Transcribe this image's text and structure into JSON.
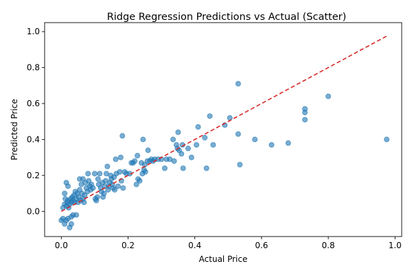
{
  "chart_data": {
    "type": "scatter",
    "title": "Ridge Regression Predictions vs Actual (Scatter)",
    "xlabel": "Actual Price",
    "ylabel": "Predicted Price",
    "xlim": [
      -0.05,
      1.02
    ],
    "ylim": [
      -0.14,
      1.05
    ],
    "xticks": [
      0.0,
      0.2,
      0.4,
      0.6,
      0.8,
      1.0
    ],
    "yticks": [
      0.0,
      0.2,
      0.4,
      0.6,
      0.8,
      1.0
    ],
    "xtick_labels": [
      "0.0",
      "0.2",
      "0.4",
      "0.6",
      "0.8",
      "1.0"
    ],
    "ytick_labels": [
      "0.0",
      "0.2",
      "0.4",
      "0.6",
      "0.8",
      "1.0"
    ],
    "grid": false,
    "legend": "none",
    "colors": {
      "points": "#1f77b4",
      "reference_line": "#d62728"
    },
    "reference_line": {
      "style": "dashed",
      "x": [
        0.0,
        0.975
      ],
      "y": [
        0.0,
        0.975
      ]
    },
    "points": [
      [
        0.0,
        -0.05
      ],
      [
        0.005,
        -0.04
      ],
      [
        0.01,
        -0.07
      ],
      [
        0.015,
        -0.05
      ],
      [
        0.02,
        -0.04
      ],
      [
        0.025,
        -0.09
      ],
      [
        0.03,
        -0.07
      ],
      [
        0.03,
        -0.03
      ],
      [
        0.035,
        -0.02
      ],
      [
        0.045,
        -0.02
      ],
      [
        0.005,
        0.02
      ],
      [
        0.01,
        0.04
      ],
      [
        0.012,
        0.07
      ],
      [
        0.015,
        0.03
      ],
      [
        0.018,
        0.05
      ],
      [
        0.02,
        0.06
      ],
      [
        0.022,
        0.02
      ],
      [
        0.025,
        0.04
      ],
      [
        0.028,
        0.07
      ],
      [
        0.03,
        0.05
      ],
      [
        0.033,
        0.08
      ],
      [
        0.035,
        0.06
      ],
      [
        0.038,
        0.09
      ],
      [
        0.04,
        0.05
      ],
      [
        0.042,
        0.11
      ],
      [
        0.045,
        0.07
      ],
      [
        0.048,
        0.1
      ],
      [
        0.05,
        0.05
      ],
      [
        0.052,
        0.08
      ],
      [
        0.055,
        0.12
      ],
      [
        0.058,
        0.06
      ],
      [
        0.06,
        0.15
      ],
      [
        0.062,
        0.1
      ],
      [
        0.065,
        0.07
      ],
      [
        0.068,
        0.05
      ],
      [
        0.07,
        0.09
      ],
      [
        0.072,
        0.16
      ],
      [
        0.075,
        0.13
      ],
      [
        0.078,
        0.11
      ],
      [
        0.08,
        0.21
      ],
      [
        0.082,
        0.17
      ],
      [
        0.085,
        0.14
      ],
      [
        0.088,
        0.12
      ],
      [
        0.09,
        0.15
      ],
      [
        0.095,
        0.13
      ],
      [
        0.01,
        0.1
      ],
      [
        0.015,
        0.16
      ],
      [
        0.02,
        0.14
      ],
      [
        0.055,
        0.18
      ],
      [
        0.065,
        0.18
      ],
      [
        0.1,
        0.21
      ],
      [
        0.102,
        0.07
      ],
      [
        0.105,
        0.06
      ],
      [
        0.108,
        0.08
      ],
      [
        0.11,
        0.18
      ],
      [
        0.112,
        0.15
      ],
      [
        0.115,
        0.21
      ],
      [
        0.118,
        0.13
      ],
      [
        0.12,
        0.11
      ],
      [
        0.123,
        0.16
      ],
      [
        0.125,
        0.08
      ],
      [
        0.128,
        0.1
      ],
      [
        0.13,
        0.14
      ],
      [
        0.133,
        0.17
      ],
      [
        0.135,
        0.21
      ],
      [
        0.138,
        0.25
      ],
      [
        0.14,
        0.12
      ],
      [
        0.142,
        0.14
      ],
      [
        0.145,
        0.16
      ],
      [
        0.148,
        0.2
      ],
      [
        0.15,
        0.18
      ],
      [
        0.153,
        0.15
      ],
      [
        0.155,
        0.13
      ],
      [
        0.158,
        0.19
      ],
      [
        0.16,
        0.12
      ],
      [
        0.163,
        0.29
      ],
      [
        0.165,
        0.21
      ],
      [
        0.17,
        0.14
      ],
      [
        0.175,
        0.22
      ],
      [
        0.178,
        0.3
      ],
      [
        0.18,
        0.17
      ],
      [
        0.183,
        0.42
      ],
      [
        0.185,
        0.13
      ],
      [
        0.19,
        0.22
      ],
      [
        0.195,
        0.21
      ],
      [
        0.205,
        0.21
      ],
      [
        0.21,
        0.27
      ],
      [
        0.215,
        0.27
      ],
      [
        0.22,
        0.28
      ],
      [
        0.225,
        0.15
      ],
      [
        0.228,
        0.31
      ],
      [
        0.23,
        0.18
      ],
      [
        0.235,
        0.17
      ],
      [
        0.24,
        0.27
      ],
      [
        0.243,
        0.21
      ],
      [
        0.245,
        0.4
      ],
      [
        0.248,
        0.23
      ],
      [
        0.25,
        0.26
      ],
      [
        0.252,
        0.22
      ],
      [
        0.258,
        0.28
      ],
      [
        0.26,
        0.34
      ],
      [
        0.265,
        0.28
      ],
      [
        0.27,
        0.29
      ],
      [
        0.275,
        0.28
      ],
      [
        0.28,
        0.29
      ],
      [
        0.29,
        0.29
      ],
      [
        0.3,
        0.29
      ],
      [
        0.31,
        0.24
      ],
      [
        0.315,
        0.29
      ],
      [
        0.325,
        0.29
      ],
      [
        0.335,
        0.4
      ],
      [
        0.338,
        0.28
      ],
      [
        0.345,
        0.37
      ],
      [
        0.348,
        0.35
      ],
      [
        0.35,
        0.44
      ],
      [
        0.353,
        0.34
      ],
      [
        0.36,
        0.32
      ],
      [
        0.363,
        0.37
      ],
      [
        0.365,
        0.24
      ],
      [
        0.38,
        0.35
      ],
      [
        0.39,
        0.3
      ],
      [
        0.405,
        0.37
      ],
      [
        0.41,
        0.47
      ],
      [
        0.43,
        0.41
      ],
      [
        0.435,
        0.24
      ],
      [
        0.445,
        0.53
      ],
      [
        0.455,
        0.37
      ],
      [
        0.49,
        0.48
      ],
      [
        0.505,
        0.52
      ],
      [
        0.53,
        0.43
      ],
      [
        0.53,
        0.71
      ],
      [
        0.535,
        0.26
      ],
      [
        0.58,
        0.4
      ],
      [
        0.63,
        0.37
      ],
      [
        0.68,
        0.38
      ],
      [
        0.73,
        0.57
      ],
      [
        0.73,
        0.55
      ],
      [
        0.73,
        0.51
      ],
      [
        0.8,
        0.64
      ],
      [
        0.975,
        0.4
      ]
    ]
  }
}
